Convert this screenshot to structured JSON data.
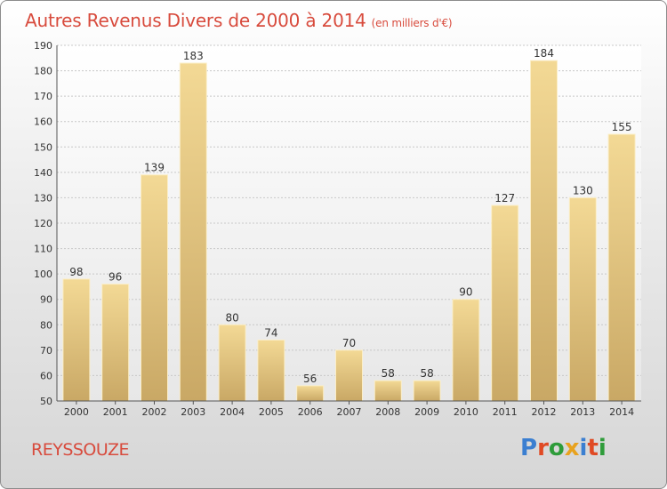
{
  "title": "Autres Revenus Divers de 2000 à 2014",
  "subtitle": "(en milliers d'€)",
  "location": "REYSSOUZE",
  "brand": "Proxiti",
  "brand_colors": [
    "#3b7fd1",
    "#e04a24",
    "#2e9c3a",
    "#e8a21e",
    "#3b7fd1",
    "#e04a24",
    "#2e9c3a"
  ],
  "chart_data": {
    "type": "bar",
    "categories": [
      "2000",
      "2001",
      "2002",
      "2003",
      "2004",
      "2005",
      "2006",
      "2007",
      "2008",
      "2009",
      "2010",
      "2011",
      "2012",
      "2013",
      "2014"
    ],
    "values": [
      98,
      96,
      139,
      183,
      80,
      74,
      56,
      70,
      58,
      58,
      90,
      127,
      184,
      130,
      155
    ],
    "ylim": [
      50,
      190
    ],
    "yticks": [
      50,
      60,
      70,
      80,
      90,
      100,
      110,
      120,
      130,
      140,
      150,
      160,
      170,
      180,
      190
    ],
    "grid": true,
    "bar_color": "#e8c97a"
  }
}
